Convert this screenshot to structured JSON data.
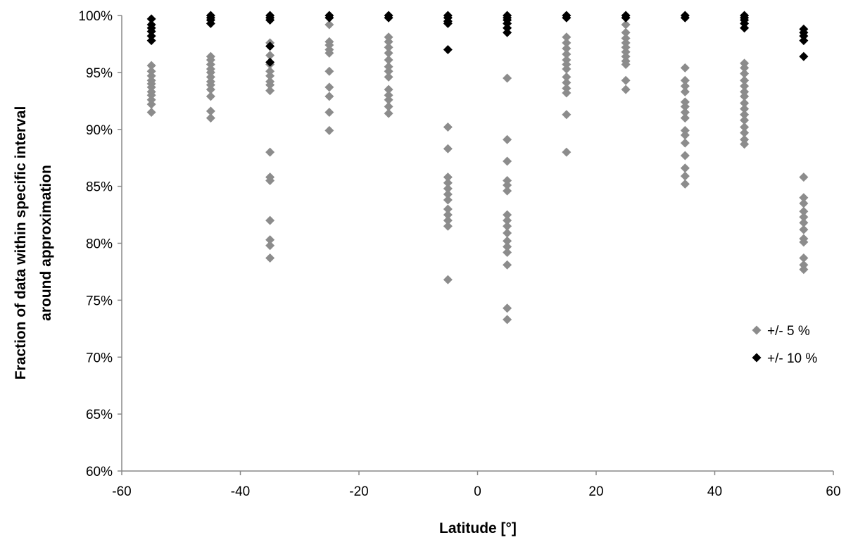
{
  "chart_data": {
    "type": "scatter",
    "title": "",
    "xlabel": "Latitude [°]",
    "ylabel_lines": [
      "Fraction of data within specific interval",
      "around approximation"
    ],
    "xlim": [
      -60,
      60
    ],
    "ylim": [
      0.6,
      1.0
    ],
    "x_ticks": [
      -60,
      -40,
      -20,
      0,
      20,
      40,
      60
    ],
    "x_tick_labels": [
      "-60",
      "-40",
      "-20",
      "0",
      "20",
      "40",
      "60"
    ],
    "y_ticks": [
      0.6,
      0.65,
      0.7,
      0.75,
      0.8,
      0.85,
      0.9,
      0.95,
      1.0
    ],
    "y_tick_labels": [
      "60%",
      "65%",
      "70%",
      "75%",
      "80%",
      "85%",
      "90%",
      "95%",
      "100%"
    ],
    "grid": false,
    "legend_position": "right",
    "series": [
      {
        "name": "+/- 5 %",
        "color": "#8c8c8c",
        "marker": "diamond",
        "points": [
          [
            -55,
            0.956
          ],
          [
            -55,
            0.951
          ],
          [
            -55,
            0.947
          ],
          [
            -55,
            0.943
          ],
          [
            -55,
            0.94
          ],
          [
            -55,
            0.937
          ],
          [
            -55,
            0.933
          ],
          [
            -55,
            0.93
          ],
          [
            -55,
            0.926
          ],
          [
            -55,
            0.922
          ],
          [
            -55,
            0.915
          ],
          [
            -45,
            0.964
          ],
          [
            -45,
            0.961
          ],
          [
            -45,
            0.957
          ],
          [
            -45,
            0.953
          ],
          [
            -45,
            0.95
          ],
          [
            -45,
            0.946
          ],
          [
            -45,
            0.942
          ],
          [
            -45,
            0.939
          ],
          [
            -45,
            0.935
          ],
          [
            -45,
            0.929
          ],
          [
            -45,
            0.916
          ],
          [
            -45,
            0.91
          ],
          [
            -35,
            0.976
          ],
          [
            -35,
            0.965
          ],
          [
            -35,
            0.957
          ],
          [
            -35,
            0.951
          ],
          [
            -35,
            0.947
          ],
          [
            -35,
            0.942
          ],
          [
            -35,
            0.939
          ],
          [
            -35,
            0.934
          ],
          [
            -35,
            0.88
          ],
          [
            -35,
            0.858
          ],
          [
            -35,
            0.855
          ],
          [
            -35,
            0.82
          ],
          [
            -35,
            0.803
          ],
          [
            -35,
            0.798
          ],
          [
            -35,
            0.787
          ],
          [
            -25,
            0.992
          ],
          [
            -25,
            0.977
          ],
          [
            -25,
            0.974
          ],
          [
            -25,
            0.97
          ],
          [
            -25,
            0.967
          ],
          [
            -25,
            0.951
          ],
          [
            -25,
            0.937
          ],
          [
            -25,
            0.929
          ],
          [
            -25,
            0.915
          ],
          [
            -25,
            0.899
          ],
          [
            -15,
            0.981
          ],
          [
            -15,
            0.977
          ],
          [
            -15,
            0.972
          ],
          [
            -15,
            0.967
          ],
          [
            -15,
            0.961
          ],
          [
            -15,
            0.955
          ],
          [
            -15,
            0.951
          ],
          [
            -15,
            0.946
          ],
          [
            -15,
            0.935
          ],
          [
            -15,
            0.93
          ],
          [
            -15,
            0.926
          ],
          [
            -15,
            0.92
          ],
          [
            -15,
            0.914
          ],
          [
            -5,
            0.902
          ],
          [
            -5,
            0.883
          ],
          [
            -5,
            0.858
          ],
          [
            -5,
            0.853
          ],
          [
            -5,
            0.848
          ],
          [
            -5,
            0.843
          ],
          [
            -5,
            0.838
          ],
          [
            -5,
            0.83
          ],
          [
            -5,
            0.825
          ],
          [
            -5,
            0.82
          ],
          [
            -5,
            0.815
          ],
          [
            -5,
            0.768
          ],
          [
            5,
            0.945
          ],
          [
            5,
            0.891
          ],
          [
            5,
            0.872
          ],
          [
            5,
            0.855
          ],
          [
            5,
            0.851
          ],
          [
            5,
            0.846
          ],
          [
            5,
            0.825
          ],
          [
            5,
            0.82
          ],
          [
            5,
            0.815
          ],
          [
            5,
            0.809
          ],
          [
            5,
            0.802
          ],
          [
            5,
            0.797
          ],
          [
            5,
            0.792
          ],
          [
            5,
            0.781
          ],
          [
            5,
            0.743
          ],
          [
            5,
            0.733
          ],
          [
            15,
            0.981
          ],
          [
            15,
            0.976
          ],
          [
            15,
            0.971
          ],
          [
            15,
            0.966
          ],
          [
            15,
            0.961
          ],
          [
            15,
            0.957
          ],
          [
            15,
            0.953
          ],
          [
            15,
            0.946
          ],
          [
            15,
            0.941
          ],
          [
            15,
            0.936
          ],
          [
            15,
            0.932
          ],
          [
            15,
            0.913
          ],
          [
            15,
            0.88
          ],
          [
            25,
            0.992
          ],
          [
            25,
            0.985
          ],
          [
            25,
            0.98
          ],
          [
            25,
            0.976
          ],
          [
            25,
            0.972
          ],
          [
            25,
            0.968
          ],
          [
            25,
            0.964
          ],
          [
            25,
            0.96
          ],
          [
            25,
            0.957
          ],
          [
            25,
            0.943
          ],
          [
            25,
            0.935
          ],
          [
            35,
            0.954
          ],
          [
            35,
            0.943
          ],
          [
            35,
            0.938
          ],
          [
            35,
            0.933
          ],
          [
            35,
            0.924
          ],
          [
            35,
            0.92
          ],
          [
            35,
            0.915
          ],
          [
            35,
            0.91
          ],
          [
            35,
            0.899
          ],
          [
            35,
            0.895
          ],
          [
            35,
            0.888
          ],
          [
            35,
            0.877
          ],
          [
            35,
            0.866
          ],
          [
            35,
            0.859
          ],
          [
            35,
            0.852
          ],
          [
            45,
            0.958
          ],
          [
            45,
            0.954
          ],
          [
            45,
            0.949
          ],
          [
            45,
            0.943
          ],
          [
            45,
            0.938
          ],
          [
            45,
            0.933
          ],
          [
            45,
            0.929
          ],
          [
            45,
            0.923
          ],
          [
            45,
            0.918
          ],
          [
            45,
            0.913
          ],
          [
            45,
            0.908
          ],
          [
            45,
            0.902
          ],
          [
            45,
            0.897
          ],
          [
            45,
            0.891
          ],
          [
            45,
            0.887
          ],
          [
            55,
            0.858
          ],
          [
            55,
            0.84
          ],
          [
            55,
            0.835
          ],
          [
            55,
            0.828
          ],
          [
            55,
            0.823
          ],
          [
            55,
            0.818
          ],
          [
            55,
            0.812
          ],
          [
            55,
            0.804
          ],
          [
            55,
            0.801
          ],
          [
            55,
            0.787
          ],
          [
            55,
            0.781
          ],
          [
            55,
            0.777
          ]
        ]
      },
      {
        "name": "+/- 10 %",
        "color": "#000000",
        "marker": "diamond",
        "points": [
          [
            -55,
            0.997
          ],
          [
            -55,
            0.992
          ],
          [
            -55,
            0.989
          ],
          [
            -55,
            0.986
          ],
          [
            -55,
            0.982
          ],
          [
            -55,
            0.978
          ],
          [
            -45,
            1.0
          ],
          [
            -45,
            0.998
          ],
          [
            -45,
            0.996
          ],
          [
            -45,
            0.993
          ],
          [
            -35,
            1.0
          ],
          [
            -35,
            0.998
          ],
          [
            -35,
            0.996
          ],
          [
            -35,
            0.973
          ],
          [
            -35,
            0.959
          ],
          [
            -25,
            1.0
          ],
          [
            -25,
            0.998
          ],
          [
            -15,
            1.0
          ],
          [
            -15,
            0.998
          ],
          [
            -5,
            1.0
          ],
          [
            -5,
            0.998
          ],
          [
            -5,
            0.995
          ],
          [
            -5,
            0.993
          ],
          [
            -5,
            0.97
          ],
          [
            5,
            1.0
          ],
          [
            5,
            0.998
          ],
          [
            5,
            0.996
          ],
          [
            5,
            0.993
          ],
          [
            5,
            0.989
          ],
          [
            5,
            0.985
          ],
          [
            15,
            1.0
          ],
          [
            15,
            0.998
          ],
          [
            25,
            1.0
          ],
          [
            25,
            0.998
          ],
          [
            35,
            1.0
          ],
          [
            35,
            0.998
          ],
          [
            45,
            1.0
          ],
          [
            45,
            0.998
          ],
          [
            45,
            0.996
          ],
          [
            45,
            0.993
          ],
          [
            45,
            0.989
          ],
          [
            55,
            0.988
          ],
          [
            55,
            0.985
          ],
          [
            55,
            0.982
          ],
          [
            55,
            0.978
          ],
          [
            55,
            0.964
          ]
        ]
      }
    ]
  }
}
